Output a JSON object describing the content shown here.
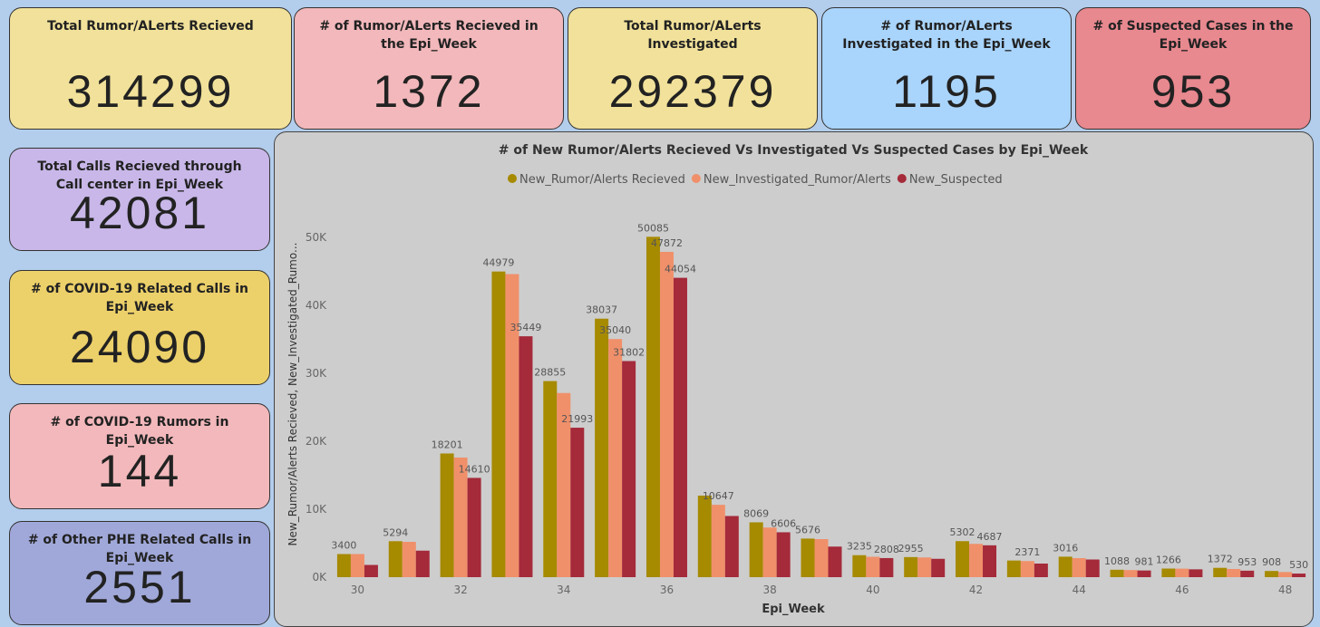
{
  "cards": [
    {
      "title": "Total Rumor/ALerts Recieved",
      "value": 314299
    },
    {
      "title": "# of Rumor/ALerts Recieved in the Epi_Week",
      "value": 1372
    },
    {
      "title": "Total Rumor/ALerts Investigated",
      "value": 292379
    },
    {
      "title": "# of Rumor/ALerts Investigated in the Epi_Week",
      "value": 1195
    },
    {
      "title": "# of Suspected Cases in the Epi_Week",
      "value": 953
    },
    {
      "title": "Total Calls Recieved through Call center in Epi_Week",
      "value": 42081
    },
    {
      "title": "# of COVID-19 Related Calls in Epi_Week",
      "value": 24090
    },
    {
      "title": "# of COVID-19 Rumors in Epi_Week",
      "value": 144
    },
    {
      "title": "# of Other PHE Related Calls in Epi_Week",
      "value": 2551
    }
  ],
  "chart_data": {
    "type": "bar",
    "title": "# of New Rumor/Alerts Recieved Vs Investigated Vs Suspected Cases by Epi_Week",
    "x_label": "Epi_Week",
    "y_label": "New_Rumor/Alerts Recieved, New_Investigated_Rumo...",
    "categories": [
      30,
      null,
      32,
      null,
      34,
      null,
      36,
      null,
      38,
      null,
      40,
      null,
      42,
      null,
      44,
      null,
      46,
      null,
      48
    ],
    "series": [
      {
        "name": "New_Rumor/Alerts Recieved",
        "color": "#a68a00",
        "values": [
          3400,
          5294,
          18201,
          44979,
          28855,
          38037,
          50085,
          12000,
          8069,
          5676,
          3235,
          2955,
          5302,
          2450,
          3016,
          1088,
          1266,
          1372,
          908
        ],
        "value_labels": [
          "3400",
          "5294",
          "18201",
          "44979",
          "28855",
          "38037",
          "50085",
          null,
          "8069",
          "5676",
          "3235",
          "2955",
          "5302",
          null,
          "3016",
          "1088",
          "1266",
          "1372",
          "908"
        ]
      },
      {
        "name": "New_Investigated_Rumor/Alerts",
        "color": "#f0906a",
        "values": [
          3400,
          5200,
          17600,
          44600,
          27100,
          35040,
          47872,
          10647,
          7300,
          5600,
          3000,
          2900,
          4900,
          2371,
          2800,
          1050,
          1250,
          1200,
          750
        ],
        "value_labels": [
          null,
          null,
          null,
          null,
          null,
          "35040",
          "47872",
          "10647",
          null,
          null,
          null,
          null,
          null,
          "2371",
          null,
          null,
          null,
          null,
          null
        ]
      },
      {
        "name": "New_Suspected",
        "color": "#a52a3a",
        "values": [
          1800,
          3900,
          14610,
          35449,
          21993,
          31802,
          44054,
          9000,
          6606,
          4500,
          2808,
          2700,
          4687,
          2000,
          2600,
          981,
          1150,
          953,
          530
        ],
        "value_labels": [
          null,
          null,
          "14610",
          "35449",
          "21993",
          "31802",
          "44054",
          null,
          "6606",
          null,
          "2808",
          null,
          "4687",
          null,
          null,
          "981",
          null,
          "953",
          "530"
        ]
      }
    ],
    "ylim": [
      0,
      54000
    ],
    "yticks": [
      {
        "value": 0,
        "label": "0K"
      },
      {
        "value": 10000,
        "label": "10K"
      },
      {
        "value": 20000,
        "label": "20K"
      },
      {
        "value": 30000,
        "label": "30K"
      },
      {
        "value": 40000,
        "label": "40K"
      },
      {
        "value": 50000,
        "label": "50K"
      }
    ],
    "grid": false
  }
}
